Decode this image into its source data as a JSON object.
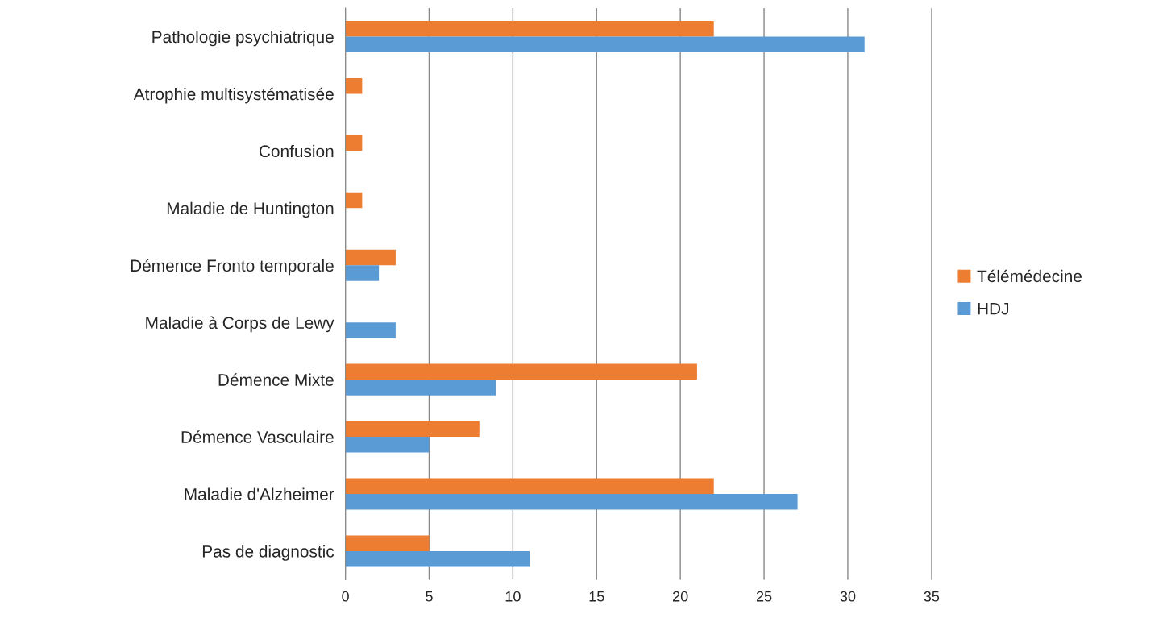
{
  "chart_data": {
    "type": "bar",
    "orientation": "horizontal",
    "categories": [
      "Pathologie psychiatrique",
      "Atrophie multisystématisée",
      "Confusion",
      "Maladie de Huntington",
      "Démence Fronto temporale",
      "Maladie à Corps de Lewy",
      "Démence Mixte",
      "Démence Vasculaire",
      "Maladie d'Alzheimer",
      "Pas de diagnostic"
    ],
    "series": [
      {
        "name": "Télémédecine",
        "color": "#ed7d31",
        "values": [
          22,
          1,
          1,
          1,
          3,
          0,
          21,
          8,
          22,
          5
        ]
      },
      {
        "name": "HDJ",
        "color": "#5b9bd5",
        "values": [
          31,
          0,
          0,
          0,
          2,
          3,
          9,
          5,
          27,
          11
        ]
      }
    ],
    "xlim": [
      0,
      35
    ],
    "xticks": [
      0,
      5,
      10,
      15,
      20,
      25,
      30,
      35
    ],
    "grid": "x",
    "legend": "right"
  }
}
